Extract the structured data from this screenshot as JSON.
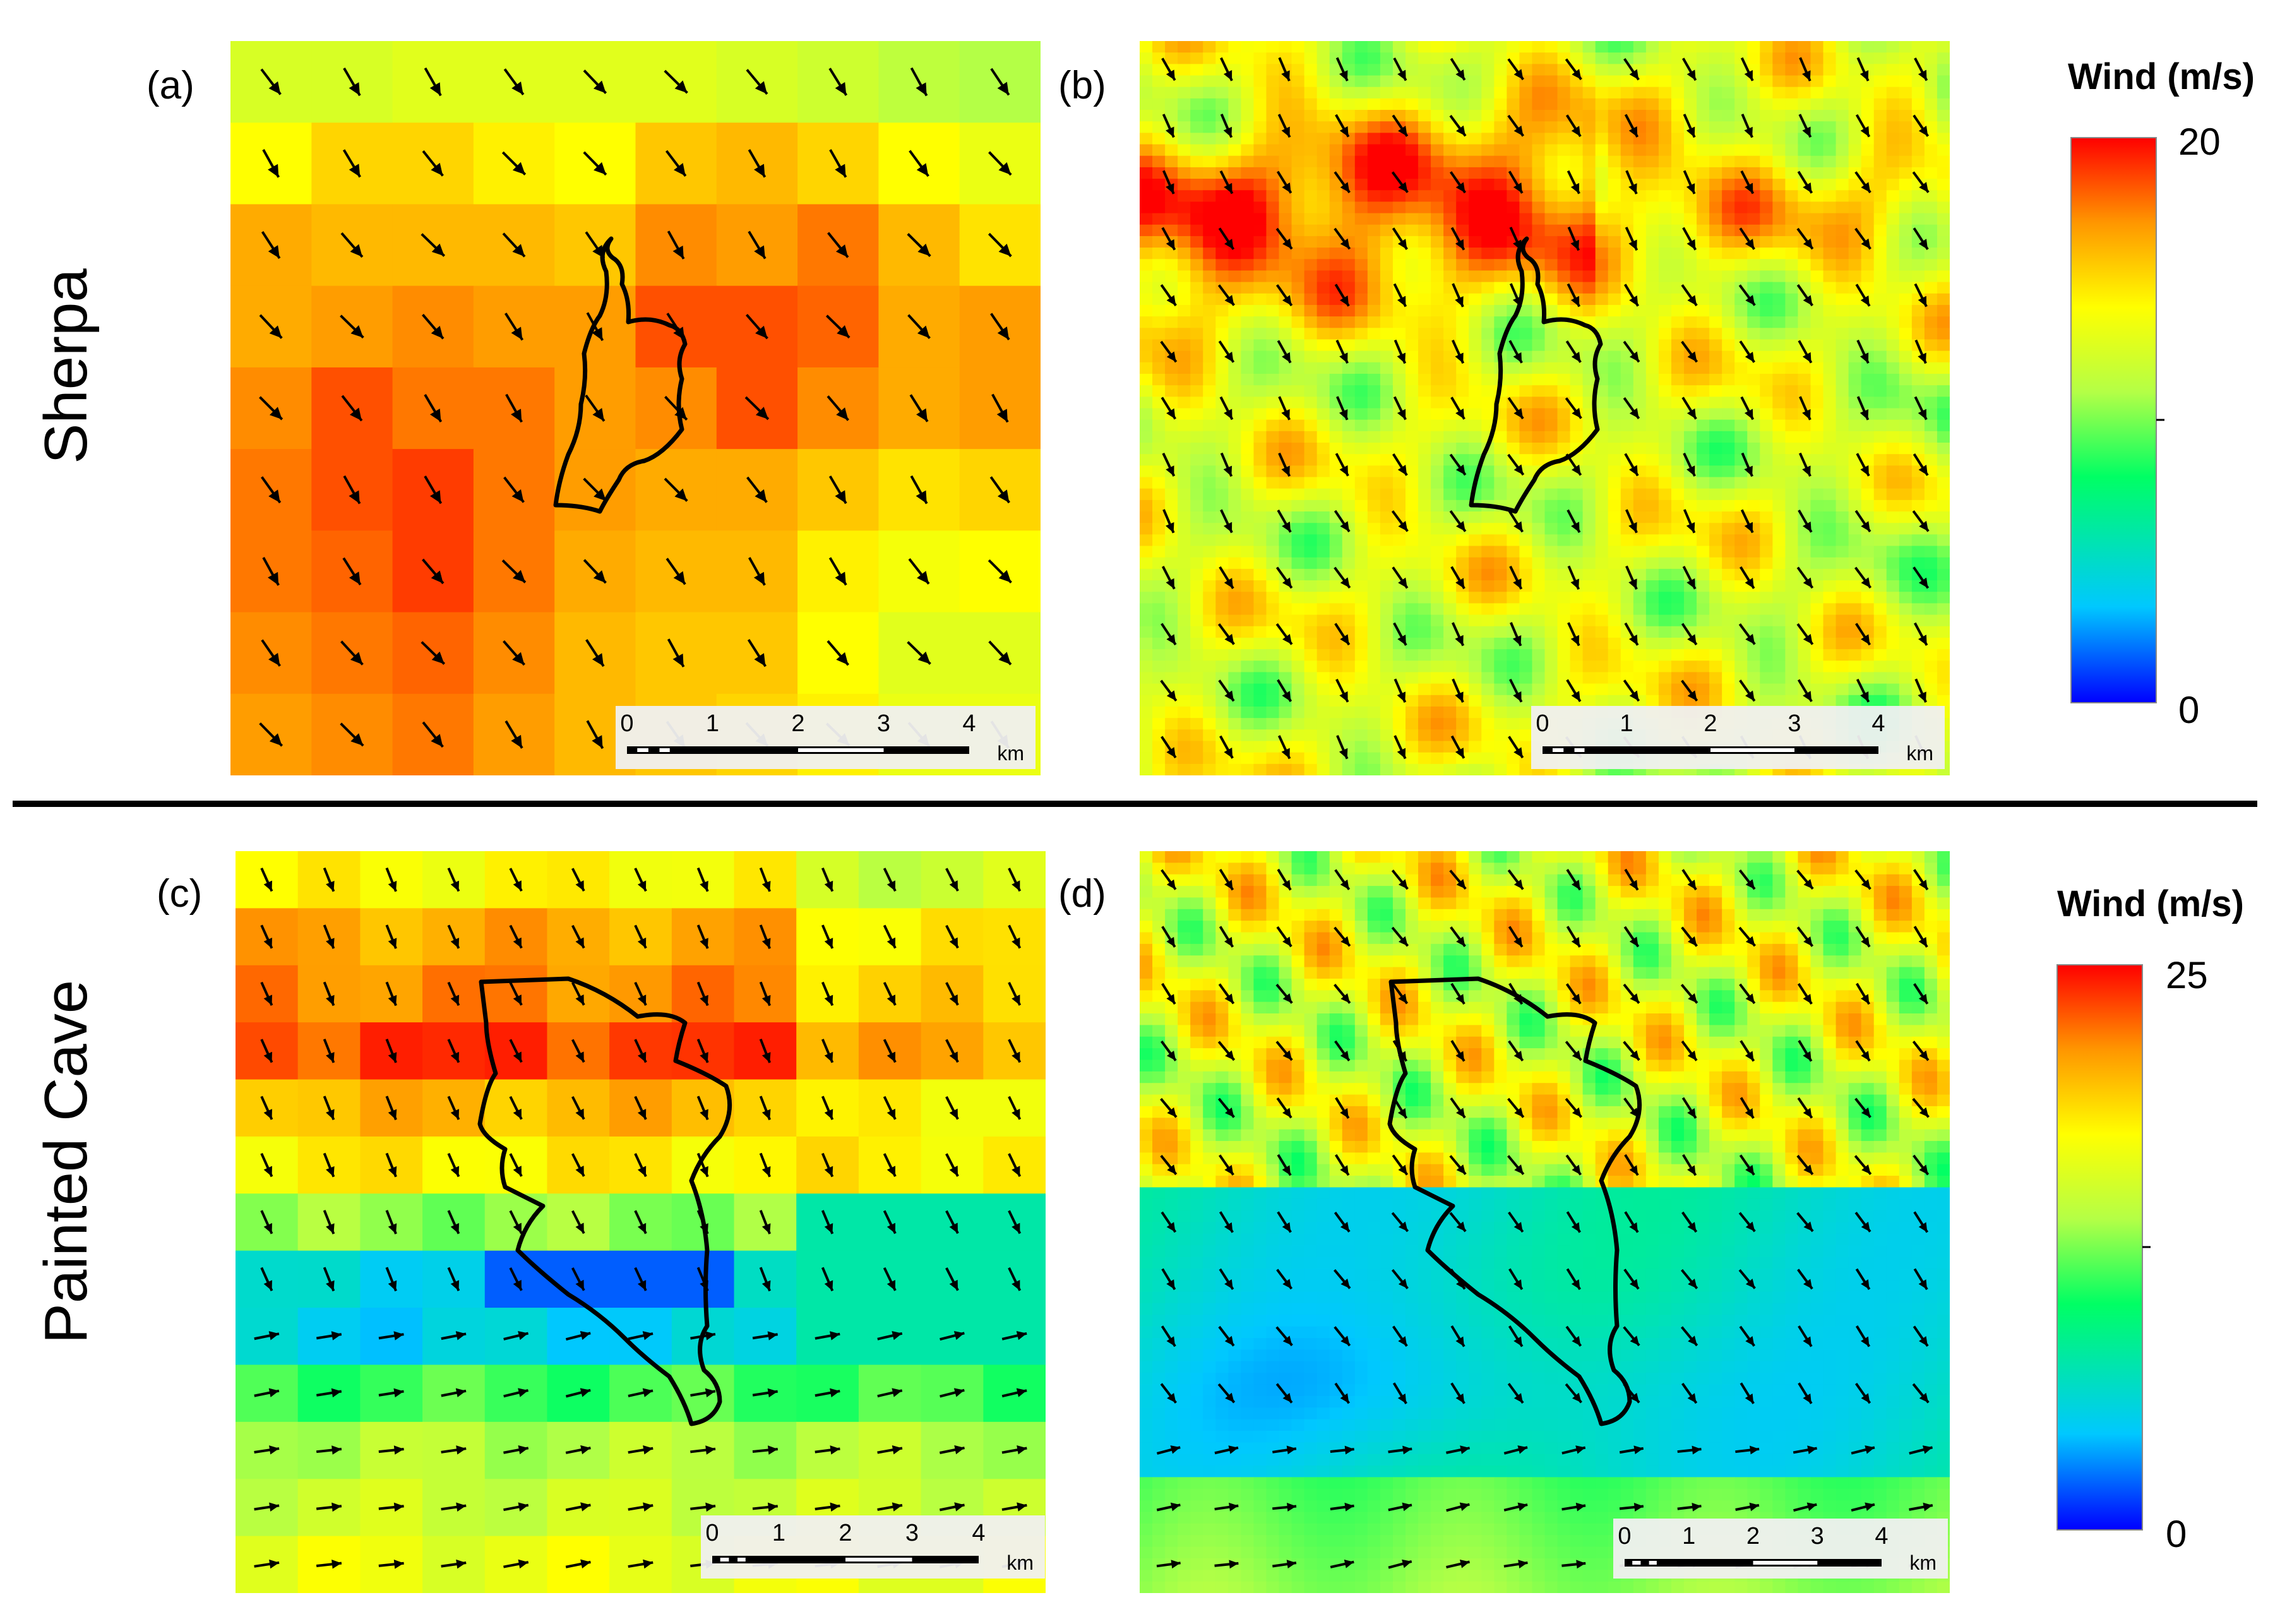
{
  "rows": [
    {
      "label": "Sherpa"
    },
    {
      "label": "Painted Cave"
    }
  ],
  "panels": [
    {
      "label": "(a)",
      "kind": "coarse",
      "row": 0
    },
    {
      "label": "(b)",
      "kind": "fine",
      "row": 0
    },
    {
      "label": "(c)",
      "kind": "coarse",
      "row": 1
    },
    {
      "label": "(d)",
      "kind": "fine",
      "row": 1
    }
  ],
  "colorbars": [
    {
      "title": "Wind (m/s)",
      "max_label": "20",
      "min_label": "0",
      "max": 20,
      "min": 0
    },
    {
      "title": "Wind (m/s)",
      "max_label": "25",
      "min_label": "0",
      "max": 25,
      "min": 0
    }
  ],
  "scalebar": {
    "ticks": [
      "0",
      "1",
      "2",
      "3",
      "4"
    ],
    "unit": "km"
  },
  "colors": {
    "ramp": [
      "#0000ff",
      "#00c8ff",
      "#00ff64",
      "#b4ff46",
      "#ffff00",
      "#ff9600",
      "#ff0000"
    ],
    "outline": "#000000",
    "arrow": "#000000"
  }
}
